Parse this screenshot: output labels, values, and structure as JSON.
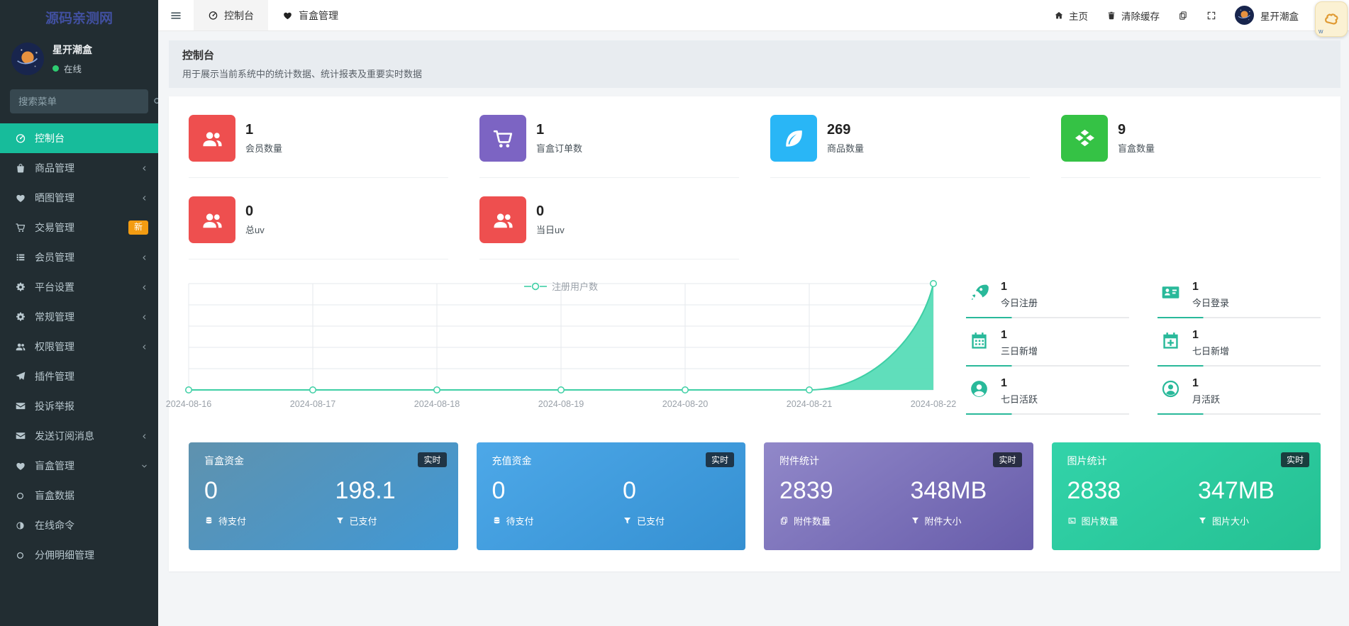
{
  "brand": {
    "title": "源码亲测网"
  },
  "user_panel": {
    "name": "星开潮盒",
    "status": "在线"
  },
  "search": {
    "placeholder": "搜索菜单"
  },
  "sidebar": {
    "items": [
      {
        "label": "控制台",
        "icon": "gauge-icon",
        "active": true
      },
      {
        "label": "商品管理",
        "icon": "shopping-bag-icon",
        "chevron": "left"
      },
      {
        "label": "晒图管理",
        "icon": "heart-box-icon",
        "chevron": "left"
      },
      {
        "label": "交易管理",
        "icon": "cart-icon",
        "badge": "新"
      },
      {
        "label": "会员管理",
        "icon": "list-icon",
        "chevron": "left"
      },
      {
        "label": "平台设置",
        "icon": "gears-icon",
        "chevron": "left"
      },
      {
        "label": "常规管理",
        "icon": "gears-icon",
        "chevron": "left"
      },
      {
        "label": "权限管理",
        "icon": "users-icon",
        "chevron": "left"
      },
      {
        "label": "插件管理",
        "icon": "paper-plane-icon"
      },
      {
        "label": "投诉举报",
        "icon": "envelope-icon"
      },
      {
        "label": "发送订阅消息",
        "icon": "envelope-icon",
        "chevron": "left"
      },
      {
        "label": "盲盒管理",
        "icon": "heart-box-icon",
        "chevron": "down",
        "expanded": true
      },
      {
        "label": "盲盒数据",
        "icon": "circle-outline-icon",
        "submenu": true
      },
      {
        "label": "在线命令",
        "icon": "half-circle-icon",
        "submenu": true
      },
      {
        "label": "分佣明细管理",
        "icon": "circle-outline-icon",
        "submenu": true
      }
    ]
  },
  "topbar": {
    "tabs": [
      {
        "label": "控制台",
        "icon": "gauge-icon",
        "active": true
      },
      {
        "label": "盲盒管理",
        "icon": "heart-box-icon",
        "active": false
      }
    ],
    "home_label": "主页",
    "clear_cache_label": "清除缓存",
    "user_name": "星开潮盒"
  },
  "floating_widget": {
    "label": "w"
  },
  "page_header": {
    "title": "控制台",
    "subtitle": "用于展示当前系统中的统计数据、统计报表及重要实时数据"
  },
  "stat_cards": [
    {
      "value": "1",
      "label": "会员数量",
      "icon": "users-icon",
      "color": "#ee4f4f"
    },
    {
      "value": "1",
      "label": "盲盒订单数",
      "icon": "cart-icon",
      "color": "#7c64c3"
    },
    {
      "value": "269",
      "label": "商品数量",
      "icon": "leaf-icon",
      "color": "#29b6f6"
    },
    {
      "value": "9",
      "label": "盲盒数量",
      "icon": "box-icon",
      "color": "#35c245"
    },
    {
      "value": "0",
      "label": "总uv",
      "icon": "users-icon",
      "color": "#ee4f4f"
    },
    {
      "value": "0",
      "label": "当日uv",
      "icon": "users-icon",
      "color": "#ee4f4f"
    }
  ],
  "chart_data": {
    "type": "area",
    "legend": "注册用户数",
    "legend_position": "top-center",
    "x": [
      "2024-08-16",
      "2024-08-17",
      "2024-08-18",
      "2024-08-19",
      "2024-08-20",
      "2024-08-21",
      "2024-08-22"
    ],
    "values": [
      0,
      0,
      0,
      0,
      0,
      0,
      1
    ],
    "ylim": [
      0,
      1
    ],
    "grid": true,
    "line_color": "#3ecfa5",
    "fill_color": "#57dcb7"
  },
  "quick_stats": [
    {
      "value": "1",
      "label": "今日注册",
      "icon": "rocket-icon"
    },
    {
      "value": "1",
      "label": "今日登录",
      "icon": "id-card-icon"
    },
    {
      "value": "1",
      "label": "三日新增",
      "icon": "calendar-icon"
    },
    {
      "value": "1",
      "label": "七日新增",
      "icon": "calendar-plus-icon"
    },
    {
      "value": "1",
      "label": "七日活跃",
      "icon": "user-circle-icon"
    },
    {
      "value": "1",
      "label": "月活跃",
      "icon": "user-circle-outline-icon"
    }
  ],
  "summary_cards": [
    {
      "title": "盲盒资金",
      "badge": "实时",
      "gradient_from": "#5f92ae",
      "gradient_to": "#4098d5",
      "items": [
        {
          "value": "0",
          "label": "待支付",
          "icon": "database-icon"
        },
        {
          "value": "198.1",
          "label": "已支付",
          "icon": "funnel-icon"
        }
      ]
    },
    {
      "title": "充值资金",
      "badge": "实时",
      "gradient_from": "#4da8e8",
      "gradient_to": "#3590d2",
      "items": [
        {
          "value": "0",
          "label": "待支付",
          "icon": "database-icon"
        },
        {
          "value": "0",
          "label": "已支付",
          "icon": "funnel-icon"
        }
      ]
    },
    {
      "title": "附件统计",
      "badge": "实时",
      "gradient_from": "#9188c9",
      "gradient_to": "#675caa",
      "items": [
        {
          "value": "2839",
          "label": "附件数量",
          "icon": "copy-icon"
        },
        {
          "value": "348MB",
          "label": "附件大小",
          "icon": "funnel-icon"
        }
      ]
    },
    {
      "title": "图片统计",
      "badge": "实时",
      "gradient_from": "#32d3a9",
      "gradient_to": "#25c193",
      "items": [
        {
          "value": "2838",
          "label": "图片数量",
          "icon": "image-icon"
        },
        {
          "value": "347MB",
          "label": "图片大小",
          "icon": "funnel-icon"
        }
      ]
    }
  ],
  "colors": {
    "sidebar_bg": "#222d32",
    "active_menu": "#17bc9b",
    "new_badge": "#f39c12",
    "quick_stat_accent": "#29b99a"
  }
}
